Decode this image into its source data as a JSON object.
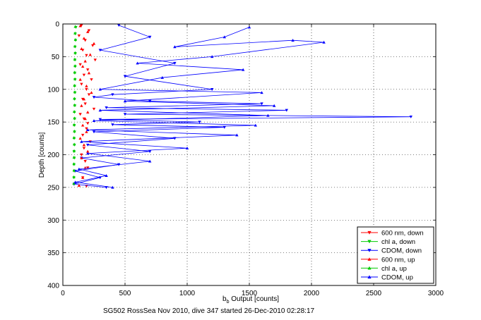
{
  "chart_data": {
    "type": "scatter",
    "title": "",
    "xlabel_main": "b",
    "xlabel_sub": "b",
    "xlabel_rest": " Output [counts]",
    "ylabel": "Depth [counts]",
    "footer": "SG502 RossSea Nov 2010, dive 347 started 26-Dec-2010 02:28:17",
    "xlim": [
      0,
      3000
    ],
    "ylim": [
      400,
      0
    ],
    "x_ticks": [
      0,
      500,
      1000,
      1500,
      2000,
      2500,
      3000
    ],
    "y_ticks": [
      0,
      50,
      100,
      150,
      200,
      250,
      300,
      350,
      400
    ],
    "grid": true,
    "legend_position": "bottom-right",
    "series": [
      {
        "name": "600 nm, down",
        "color": "#ff0000",
        "marker": "tri-down",
        "line": false,
        "x": [
          150,
          210,
          130,
          180,
          240,
          160,
          190,
          260,
          140,
          200,
          170,
          230,
          150,
          190,
          210,
          160,
          180,
          250,
          140,
          170,
          200,
          190,
          160,
          220,
          170,
          150,
          180,
          200,
          160,
          190
        ],
        "y": [
          2,
          10,
          18,
          25,
          33,
          40,
          48,
          55,
          62,
          70,
          78,
          85,
          92,
          100,
          108,
          115,
          122,
          130,
          138,
          145,
          152,
          160,
          170,
          180,
          190,
          200,
          210,
          220,
          235,
          248
        ]
      },
      {
        "name": "chl a, down",
        "color": "#00cc00",
        "marker": "tri-down",
        "line": false,
        "x": [
          105,
          100,
          102,
          98,
          100,
          97,
          99,
          96,
          98,
          95,
          97,
          94,
          96,
          93,
          95,
          92,
          94,
          91,
          93,
          90,
          92,
          90,
          91,
          89,
          90
        ],
        "y": [
          5,
          15,
          25,
          35,
          45,
          55,
          65,
          75,
          85,
          95,
          105,
          115,
          125,
          135,
          145,
          155,
          165,
          175,
          185,
          195,
          205,
          215,
          225,
          235,
          245
        ]
      },
      {
        "name": "CDOM, down",
        "color": "#0000ff",
        "marker": "tri-down",
        "line": true,
        "x": [
          450,
          700,
          300,
          900,
          500,
          1200,
          400,
          250,
          700,
          1600,
          350,
          1800,
          500,
          2800,
          300,
          1100,
          400,
          1300,
          250,
          900,
          200,
          700,
          150,
          450,
          100,
          300,
          90,
          350
        ],
        "y": [
          2,
          20,
          40,
          60,
          80,
          100,
          108,
          112,
          118,
          122,
          128,
          132,
          138,
          142,
          146,
          150,
          154,
          158,
          165,
          175,
          185,
          195,
          205,
          215,
          225,
          235,
          245,
          250
        ]
      },
      {
        "name": "600 nm, up",
        "color": "#ff0000",
        "marker": "tri-up",
        "line": false,
        "x": [
          140,
          200,
          170,
          250,
          150,
          220,
          180,
          160,
          210,
          140,
          190,
          230,
          170,
          150,
          200,
          180,
          160,
          190,
          140,
          170,
          200,
          150,
          180,
          160,
          130
        ],
        "y": [
          3,
          12,
          22,
          30,
          38,
          47,
          57,
          65,
          75,
          85,
          95,
          105,
          115,
          125,
          135,
          145,
          155,
          165,
          175,
          185,
          195,
          205,
          220,
          235,
          247
        ]
      },
      {
        "name": "chl a, up",
        "color": "#00cc00",
        "marker": "tri-up",
        "line": false,
        "x": [
          100,
          98,
          101,
          97,
          99,
          96,
          98,
          95,
          97,
          94,
          96,
          93,
          95,
          92,
          94,
          91,
          93,
          90,
          92,
          91,
          90,
          89,
          90,
          89,
          88
        ],
        "y": [
          4,
          14,
          24,
          34,
          44,
          54,
          64,
          74,
          84,
          94,
          104,
          114,
          124,
          134,
          144,
          154,
          164,
          174,
          184,
          194,
          204,
          214,
          224,
          234,
          244
        ]
      },
      {
        "name": "CDOM, up",
        "color": "#0000ff",
        "marker": "tri-up",
        "line": true,
        "x": [
          1500,
          1300,
          900,
          1850,
          2100,
          1200,
          600,
          1450,
          800,
          300,
          1600,
          500,
          1700,
          300,
          1650,
          250,
          1550,
          200,
          1400,
          150,
          1000,
          200,
          700,
          130,
          350,
          100,
          400
        ],
        "y": [
          5,
          20,
          35,
          25,
          28,
          50,
          60,
          70,
          82,
          100,
          105,
          118,
          125,
          132,
          140,
          148,
          155,
          162,
          170,
          180,
          190,
          198,
          210,
          222,
          232,
          242,
          250
        ]
      }
    ]
  }
}
